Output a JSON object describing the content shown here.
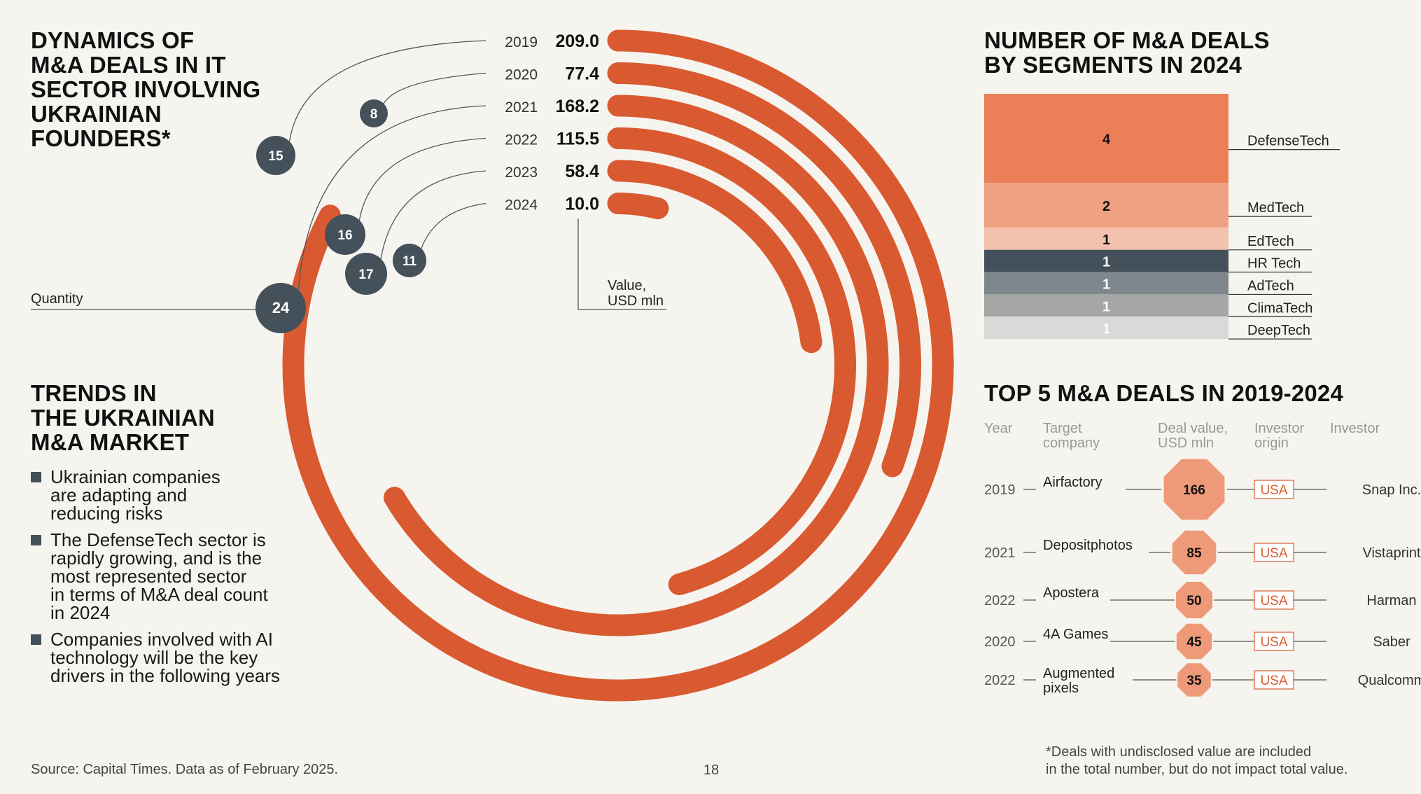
{
  "left": {
    "title_lines": [
      "DYNAMICS OF",
      "M&A DEALS IN IT",
      "SECTOR INVOLVING",
      "UKRAINIAN",
      "FOUNDERS*"
    ],
    "quantity_label": "Quantity",
    "value_label_lines": [
      "Value,",
      "USD mln"
    ],
    "trends_title_lines": [
      "TRENDS IN",
      "THE UKRAINIAN",
      "M&A MARKET"
    ],
    "trends": [
      "Ukrainian companies\nare adapting and\nreducing risks",
      "The DefenseTech sector is\nrapidly growing, and is the\nmost represented sector\nin terms of M&A deal count\nin 2024",
      "Companies involved with AI\ntechnology will be the key\ndrivers in the following years"
    ]
  },
  "chart_data": [
    {
      "type": "radial bar",
      "x": [
        2019,
        2020,
        2021,
        2022,
        2023,
        2024
      ],
      "value_labels": [
        "209.0",
        "77.4",
        "168.2",
        "115.5",
        "58.4",
        "10.0"
      ],
      "values": [
        209.0,
        77.4,
        168.2,
        115.5,
        58.4,
        10.0
      ],
      "quantity": [
        15,
        8,
        24,
        16,
        17,
        11
      ]
    },
    {
      "type": "bar",
      "title_lines": [
        "NUMBER OF M&A DEALS",
        "BY SEGMENTS IN 2024"
      ],
      "categories": [
        "DefenseTech",
        "MedTech",
        "EdTech",
        "HR Tech",
        "AdTech",
        "ClimaTech",
        "DeepTech"
      ],
      "values": [
        4,
        2,
        1,
        1,
        1,
        1,
        1
      ],
      "colors": [
        "#ea7f58",
        "#efa282",
        "#f3c1ac",
        "#44505a",
        "#7d878d",
        "#a6a6a6",
        "#d9d9d9"
      ]
    },
    {
      "type": "table",
      "title": "TOP 5 M&A DEALS IN 2019-2024",
      "headers": [
        "Year",
        "Target\ncompany",
        "Deal value,\nUSD mln",
        "Investor\norigin",
        "Investor"
      ],
      "rows": [
        {
          "year": "2019",
          "company": "Airfactory",
          "value": 166,
          "origin": "USA",
          "investor": "Snap Inc."
        },
        {
          "year": "2021",
          "company": "Depositphotos",
          "value": 85,
          "origin": "USA",
          "investor": "Vistaprint"
        },
        {
          "year": "2022",
          "company": "Apostera",
          "value": 50,
          "origin": "USA",
          "investor": "Harman"
        },
        {
          "year": "2020",
          "company": "4A Games",
          "value": 45,
          "origin": "USA",
          "investor": "Saber"
        },
        {
          "year": "2022",
          "company": "Augmented\npixels",
          "value": 35,
          "origin": "USA",
          "investor": "Qualcomm"
        }
      ]
    }
  ],
  "footer": {
    "source": "Source: Capital Times. Data as of February 2025.",
    "page_number": "18",
    "note_lines": [
      "*Deals with undisclosed value are included",
      "in the total number, but do not impact total value."
    ]
  },
  "colors": {
    "accent": "#d95a30",
    "dark": "#44505a",
    "background": "#f6f4ef",
    "deal_octagon": "#ee9a78"
  }
}
